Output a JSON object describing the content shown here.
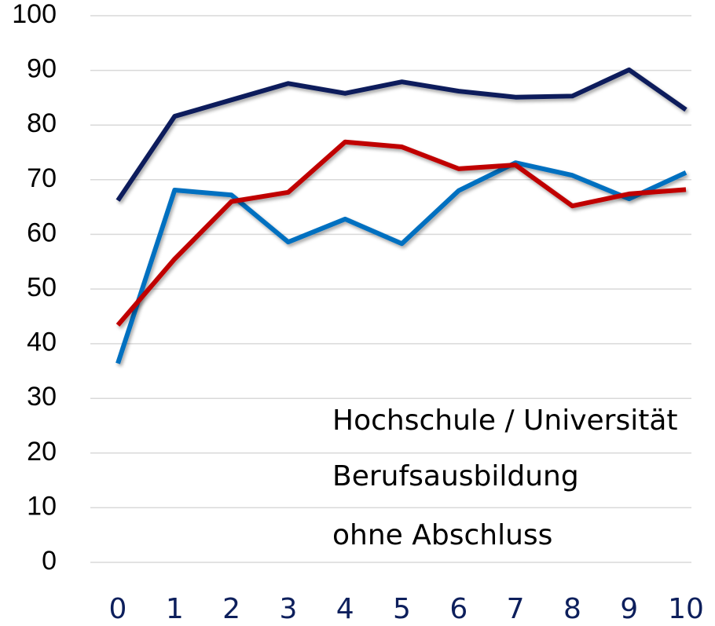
{
  "chart_data": {
    "type": "line",
    "x": [
      0,
      1,
      2,
      3,
      4,
      5,
      6,
      7,
      8,
      9,
      10
    ],
    "xlim": [
      0,
      10
    ],
    "xticks": [
      0,
      1,
      2,
      3,
      4,
      5,
      6,
      7,
      8,
      9,
      10
    ],
    "ylim": [
      0,
      100
    ],
    "yticks": [
      0,
      10,
      20,
      30,
      40,
      50,
      60,
      70,
      80,
      90,
      100
    ],
    "grid": true,
    "legend": "lower-right",
    "series": [
      {
        "name": "Hochschule / Universität",
        "color": "#0d1f5c",
        "values": [
          66.2,
          81.6,
          84.6,
          87.6,
          85.8,
          87.9,
          86.2,
          85.1,
          85.3,
          90.1,
          82.8
        ]
      },
      {
        "name": "Berufsausbildung",
        "color": "#0070c0",
        "values": [
          36.4,
          68.1,
          67.2,
          58.6,
          62.8,
          58.3,
          68.0,
          73.1,
          70.8,
          66.5,
          71.3
        ]
      },
      {
        "name": "ohne Abschluss",
        "color": "#c00000",
        "values": [
          43.4,
          55.5,
          66.0,
          67.7,
          76.9,
          76.0,
          72.0,
          72.7,
          65.2,
          67.4,
          68.2
        ]
      }
    ]
  }
}
